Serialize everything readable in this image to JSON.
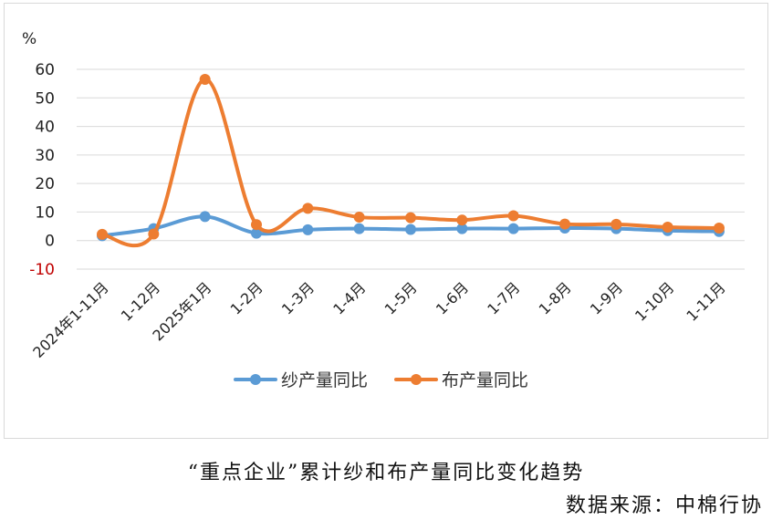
{
  "caption": "“重点企业”累计纱和布产量同比变化趋势",
  "source": "数据来源：中棉行协",
  "chart_data": {
    "type": "line",
    "ylabel_unit": "%",
    "ylim": [
      -10,
      60
    ],
    "yticks": [
      "60",
      "50",
      "40",
      "30",
      "20",
      "10",
      "0",
      "-10"
    ],
    "categories": [
      "2024年1-11月",
      "1-12月",
      "2025年1月",
      "1-2月",
      "1-3月",
      "1-4月",
      "1-5月",
      "1-6月",
      "1-7月",
      "1-8月",
      "1-9月",
      "1-10月",
      "1-11月"
    ],
    "series": [
      {
        "name": "纱产量同比",
        "color": "#5b9bd5",
        "values": [
          1.7,
          4.2,
          8.4,
          2.6,
          3.8,
          4.2,
          3.9,
          4.2,
          4.2,
          4.4,
          4.2,
          3.5,
          3.2
        ]
      },
      {
        "name": "布产量同比",
        "color": "#ed7d31",
        "values": [
          2.2,
          2.3,
          56.5,
          5.6,
          11.3,
          8.2,
          8.0,
          7.2,
          8.7,
          5.8,
          5.7,
          4.7,
          4.4
        ]
      }
    ],
    "grid": true,
    "negative_tick_color": "#c00000",
    "legend_position": "bottom"
  }
}
